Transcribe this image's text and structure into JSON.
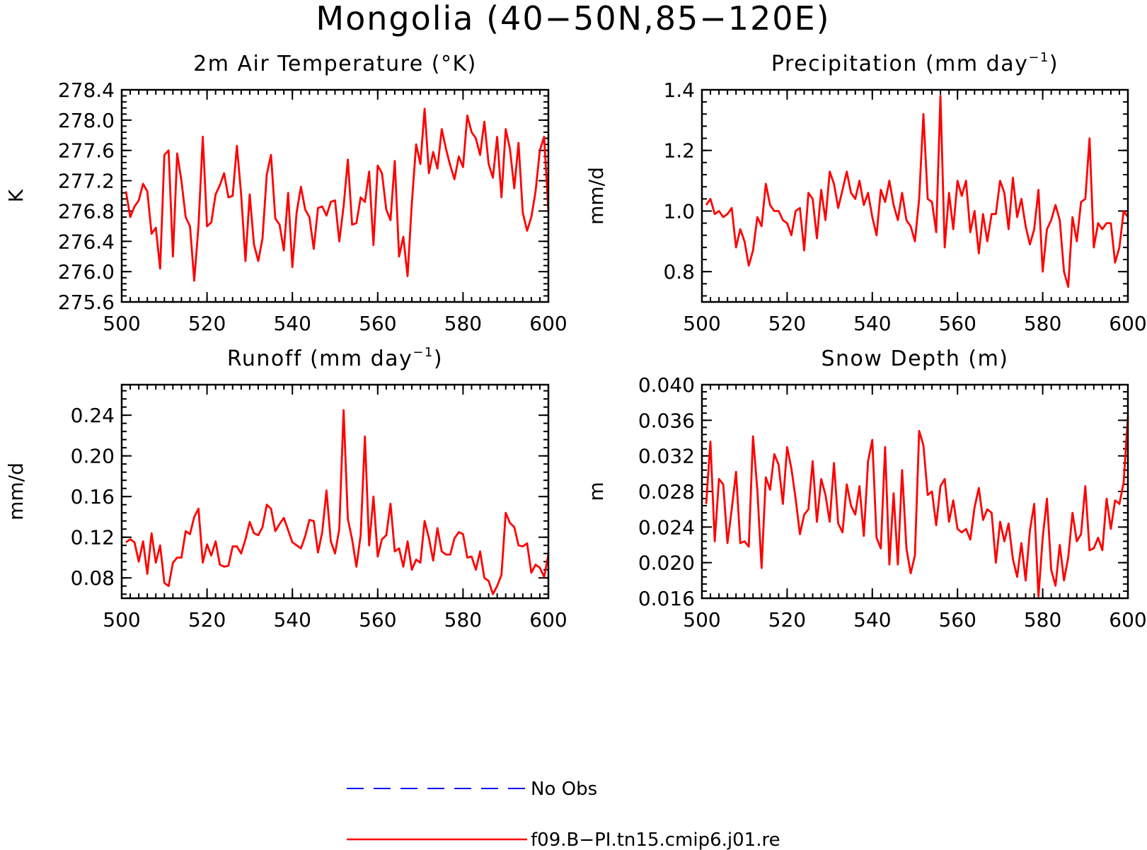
{
  "figure": {
    "title": "Mongolia (40−50N,85−120E)"
  },
  "legend": [
    {
      "label": "No Obs",
      "color": "#0000ff",
      "style": "dashed"
    },
    {
      "label": "f09.B−PI.tn15.cmip6.j01.re",
      "color": "#ff0000",
      "style": "solid"
    }
  ],
  "chart_data": [
    {
      "type": "line",
      "title": "2m Air Temperature (°K)",
      "title_sup": "",
      "title_end": "",
      "xlabel": "",
      "ylabel": "K",
      "xlim": [
        500,
        600
      ],
      "ylim": [
        275.6,
        278.4
      ],
      "xticks": [
        500,
        520,
        540,
        560,
        580,
        600
      ],
      "xtick_labels": [
        "500",
        "520",
        "540",
        "560",
        "580",
        "600"
      ],
      "yticks": [
        275.6,
        276.0,
        276.4,
        276.8,
        277.2,
        277.6,
        278.0,
        278.4
      ],
      "ytick_labels": [
        "275.6",
        "276.0",
        "276.4",
        "276.8",
        "277.2",
        "277.6",
        "278.0",
        "278.4"
      ],
      "series": [
        {
          "name": "f09.B−PI.tn15.cmip6.j01.re",
          "color": "#ff0000",
          "x_start": 501,
          "x_step": 1,
          "values": [
            277.06,
            276.72,
            276.86,
            276.94,
            277.16,
            277.06,
            276.5,
            276.58,
            276.04,
            277.54,
            277.6,
            276.2,
            277.56,
            277.2,
            276.72,
            276.6,
            275.88,
            276.6,
            277.78,
            276.6,
            276.65,
            277.02,
            277.14,
            277.3,
            276.98,
            277.0,
            277.66,
            277.02,
            276.14,
            277.02,
            276.36,
            276.14,
            276.44,
            277.28,
            277.54,
            276.7,
            276.62,
            276.28,
            277.04,
            276.06,
            276.78,
            277.12,
            276.82,
            276.72,
            276.3,
            276.84,
            276.86,
            276.74,
            276.92,
            276.94,
            276.4,
            276.86,
            277.48,
            276.62,
            276.64,
            276.98,
            276.92,
            277.32,
            276.35,
            277.4,
            277.3,
            276.82,
            276.68,
            277.46,
            276.2,
            276.46,
            275.94,
            276.9,
            277.68,
            277.42,
            278.15,
            277.3,
            277.58,
            277.36,
            277.88,
            277.62,
            277.4,
            277.22,
            277.52,
            277.38,
            278.06,
            277.84,
            277.76,
            277.54,
            277.98,
            277.42,
            277.24,
            277.78,
            276.98,
            277.88,
            277.62,
            277.1,
            277.7,
            276.78,
            276.54,
            276.72,
            277.06,
            277.6,
            277.78,
            276.8
          ]
        }
      ]
    },
    {
      "type": "line",
      "title": "Precipitation (mm day",
      "title_sup": "−1",
      "title_end": ")",
      "xlabel": "",
      "ylabel": "mm/d",
      "xlim": [
        500,
        600
      ],
      "ylim": [
        0.7,
        1.4
      ],
      "xticks": [
        500,
        520,
        540,
        560,
        580,
        600
      ],
      "xtick_labels": [
        "500",
        "520",
        "540",
        "560",
        "580",
        "600"
      ],
      "yticks": [
        0.8,
        1.0,
        1.2,
        1.4
      ],
      "ytick_labels": [
        "0.8",
        "1.0",
        "1.2",
        "1.4"
      ],
      "series": [
        {
          "name": "f09.B−PI.tn15.cmip6.j01.re",
          "color": "#ff0000",
          "x_start": 501,
          "x_step": 1,
          "values": [
            1.02,
            1.04,
            0.99,
            1.0,
            0.98,
            0.99,
            1.01,
            0.88,
            0.94,
            0.9,
            0.82,
            0.87,
            0.98,
            0.95,
            1.09,
            1.02,
            1.0,
            1.0,
            0.97,
            0.96,
            0.92,
            1.0,
            1.01,
            0.87,
            1.06,
            1.04,
            0.91,
            1.07,
            0.97,
            1.13,
            1.09,
            1.01,
            1.07,
            1.13,
            1.06,
            1.04,
            1.1,
            1.02,
            1.06,
            0.98,
            0.92,
            1.07,
            1.03,
            1.1,
            1.02,
            0.97,
            1.06,
            0.97,
            0.95,
            0.9,
            1.04,
            1.32,
            1.04,
            1.03,
            0.93,
            1.38,
            0.88,
            1.06,
            0.94,
            1.1,
            1.05,
            1.1,
            0.93,
            1.0,
            0.86,
            0.99,
            0.9,
            0.99,
            0.99,
            1.1,
            1.06,
            0.94,
            1.11,
            0.98,
            1.04,
            0.95,
            0.89,
            0.94,
            1.07,
            0.8,
            0.94,
            0.97,
            1.02,
            0.97,
            0.8,
            0.75,
            0.98,
            0.9,
            1.03,
            1.04,
            1.24,
            0.88,
            0.96,
            0.94,
            0.96,
            0.96,
            0.83,
            0.88,
            1.0,
            0.98
          ]
        }
      ]
    },
    {
      "type": "line",
      "title": "Runoff (mm day",
      "title_sup": "−1",
      "title_end": ")",
      "xlabel": "",
      "ylabel": "mm/d",
      "xlim": [
        500,
        600
      ],
      "ylim": [
        0.06,
        0.27
      ],
      "xticks": [
        500,
        520,
        540,
        560,
        580,
        600
      ],
      "xtick_labels": [
        "500",
        "520",
        "540",
        "560",
        "580",
        "600"
      ],
      "yticks": [
        0.08,
        0.12,
        0.16,
        0.2,
        0.24
      ],
      "ytick_labels": [
        "0.08",
        "0.12",
        "0.16",
        "0.20",
        "0.24"
      ],
      "series": [
        {
          "name": "f09.B−PI.tn15.cmip6.j01.re",
          "color": "#ff0000",
          "x_start": 501,
          "x_step": 1,
          "values": [
            0.115,
            0.118,
            0.115,
            0.096,
            0.116,
            0.084,
            0.124,
            0.095,
            0.112,
            0.075,
            0.072,
            0.095,
            0.1,
            0.1,
            0.126,
            0.123,
            0.14,
            0.148,
            0.095,
            0.113,
            0.102,
            0.116,
            0.093,
            0.091,
            0.092,
            0.111,
            0.111,
            0.104,
            0.118,
            0.135,
            0.124,
            0.122,
            0.13,
            0.152,
            0.148,
            0.126,
            0.133,
            0.139,
            0.127,
            0.115,
            0.112,
            0.109,
            0.121,
            0.137,
            0.136,
            0.105,
            0.125,
            0.166,
            0.116,
            0.104,
            0.128,
            0.245,
            0.138,
            0.118,
            0.091,
            0.122,
            0.219,
            0.112,
            0.16,
            0.101,
            0.118,
            0.122,
            0.153,
            0.106,
            0.109,
            0.091,
            0.116,
            0.088,
            0.098,
            0.095,
            0.136,
            0.119,
            0.097,
            0.129,
            0.106,
            0.103,
            0.103,
            0.119,
            0.125,
            0.123,
            0.1,
            0.101,
            0.088,
            0.106,
            0.08,
            0.077,
            0.064,
            0.072,
            0.083,
            0.144,
            0.134,
            0.13,
            0.112,
            0.111,
            0.114,
            0.085,
            0.093,
            0.09,
            0.081,
            0.103
          ]
        }
      ]
    },
    {
      "type": "line",
      "title": "Snow Depth (m)",
      "title_sup": "",
      "title_end": "",
      "xlabel": "",
      "ylabel": "m",
      "xlim": [
        500,
        600
      ],
      "ylim": [
        0.016,
        0.04
      ],
      "xticks": [
        500,
        520,
        540,
        560,
        580,
        600
      ],
      "xtick_labels": [
        "500",
        "520",
        "540",
        "560",
        "580",
        "600"
      ],
      "yticks": [
        0.016,
        0.02,
        0.024,
        0.028,
        0.032,
        0.036,
        0.04
      ],
      "ytick_labels": [
        "0.016",
        "0.020",
        "0.024",
        "0.028",
        "0.032",
        "0.036",
        "0.040"
      ],
      "series": [
        {
          "name": "f09.B−PI.tn15.cmip6.j01.re",
          "color": "#ff0000",
          "x_start": 501,
          "x_step": 1,
          "values": [
            0.0266,
            0.0336,
            0.0224,
            0.0294,
            0.0288,
            0.0222,
            0.026,
            0.0302,
            0.0222,
            0.0224,
            0.0218,
            0.0342,
            0.0282,
            0.0194,
            0.0296,
            0.0282,
            0.0322,
            0.031,
            0.0266,
            0.033,
            0.0306,
            0.0272,
            0.0232,
            0.0254,
            0.026,
            0.0314,
            0.0246,
            0.0294,
            0.0276,
            0.0246,
            0.0312,
            0.0244,
            0.0234,
            0.0288,
            0.0264,
            0.0254,
            0.0286,
            0.023,
            0.0314,
            0.0338,
            0.0228,
            0.0216,
            0.033,
            0.0198,
            0.0278,
            0.0198,
            0.0304,
            0.0216,
            0.0188,
            0.0208,
            0.0348,
            0.0332,
            0.0276,
            0.028,
            0.0242,
            0.0286,
            0.0294,
            0.0246,
            0.027,
            0.0238,
            0.0234,
            0.0238,
            0.0226,
            0.0262,
            0.0284,
            0.0248,
            0.026,
            0.0256,
            0.02,
            0.0246,
            0.0224,
            0.0244,
            0.0204,
            0.0184,
            0.0222,
            0.018,
            0.0236,
            0.0266,
            0.0162,
            0.0228,
            0.0272,
            0.0192,
            0.0174,
            0.022,
            0.018,
            0.0206,
            0.0256,
            0.0224,
            0.0232,
            0.0286,
            0.0214,
            0.0216,
            0.0228,
            0.0214,
            0.0272,
            0.0238,
            0.027,
            0.0266,
            0.029,
            0.0364
          ]
        }
      ]
    }
  ]
}
